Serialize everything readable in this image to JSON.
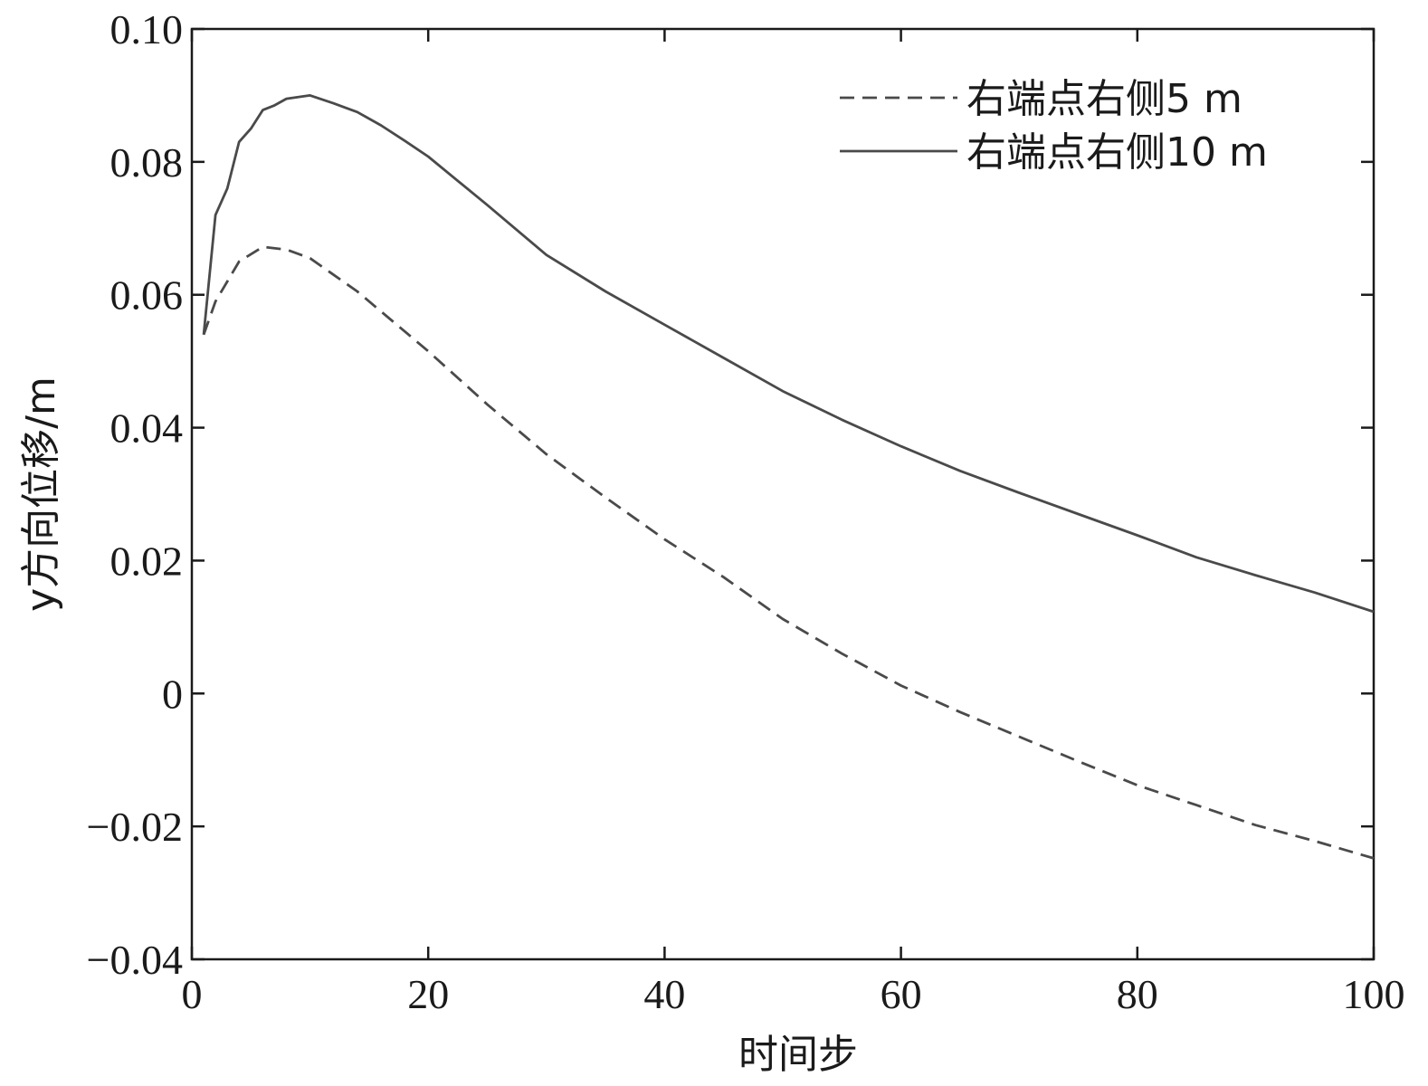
{
  "chart_data": {
    "type": "line",
    "xlabel": "时间步",
    "ylabel": "y方向位移/m",
    "xlim": [
      0,
      100
    ],
    "ylim": [
      -0.04,
      0.1
    ],
    "x_ticks": [
      0,
      20,
      40,
      60,
      80,
      100
    ],
    "x_tick_labels": [
      "0",
      "20",
      "40",
      "60",
      "80",
      "100"
    ],
    "y_ticks": [
      -0.04,
      -0.02,
      0,
      0.02,
      0.04,
      0.06,
      0.08,
      0.1
    ],
    "y_tick_labels": [
      "−0.04",
      "−0.02",
      "0",
      "0.02",
      "0.04",
      "0.06",
      "0.08",
      "0.10"
    ],
    "grid": false,
    "legend_position": "top-right",
    "series": [
      {
        "name": "右端点右侧5 m",
        "style": "dashed",
        "color": "#4a4a4a",
        "x": [
          1,
          2,
          3,
          4,
          6,
          8,
          10,
          12,
          14,
          16,
          18,
          20,
          25,
          30,
          35,
          40,
          45,
          50,
          55,
          60,
          65,
          70,
          75,
          80,
          85,
          90,
          95,
          100
        ],
        "y": [
          0.054,
          0.059,
          0.062,
          0.065,
          0.0672,
          0.0668,
          0.0655,
          0.063,
          0.0605,
          0.0575,
          0.0545,
          0.0515,
          0.0435,
          0.036,
          0.0295,
          0.0232,
          0.0175,
          0.0112,
          0.006,
          0.0012,
          -0.0028,
          -0.0065,
          -0.0102,
          -0.0138,
          -0.0168,
          -0.0198,
          -0.0222,
          -0.0248
        ]
      },
      {
        "name": "右端点右侧10 m",
        "style": "solid",
        "color": "#4a4a4a",
        "x": [
          1,
          2,
          3,
          4,
          5,
          6,
          7,
          8,
          10,
          12,
          14,
          16,
          18,
          20,
          25,
          30,
          35,
          40,
          45,
          50,
          55,
          60,
          65,
          70,
          75,
          80,
          85,
          90,
          95,
          100
        ],
        "y": [
          0.054,
          0.072,
          0.076,
          0.083,
          0.085,
          0.0878,
          0.0885,
          0.0895,
          0.09,
          0.0888,
          0.0875,
          0.0855,
          0.0832,
          0.0808,
          0.0735,
          0.066,
          0.0605,
          0.0555,
          0.0505,
          0.0455,
          0.0412,
          0.0372,
          0.0335,
          0.0302,
          0.027,
          0.0238,
          0.0205,
          0.0178,
          0.0152,
          0.0123
        ]
      }
    ]
  }
}
